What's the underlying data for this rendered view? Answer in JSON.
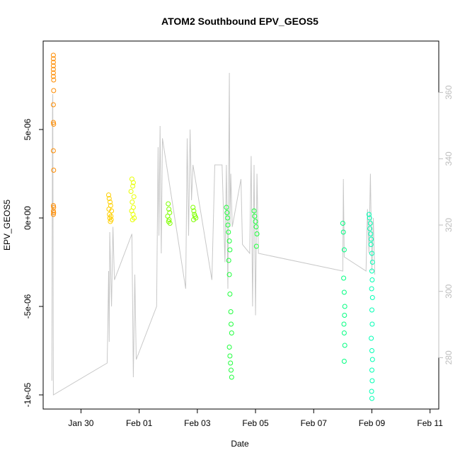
{
  "chart_data": {
    "type": "scatter",
    "title": "ATOM2 Southbound EPV_GEOS5",
    "xlabel": "Date",
    "ylabel": "EPV_GEOS5",
    "x_ticks": [
      "Jan 30",
      "Feb 01",
      "Feb 03",
      "Feb 05",
      "Feb 07",
      "Feb 09",
      "Feb 11"
    ],
    "y_ticks": [
      "-1e-05",
      "-5e-06",
      "0e+00",
      "5e-06"
    ],
    "y_tick_values": [
      -1e-05,
      -5e-06,
      0,
      5e-06
    ],
    "y2_ticks": [
      "280",
      "300",
      "320",
      "340",
      "360"
    ],
    "y2_tick_values": [
      280,
      300,
      320,
      340,
      360
    ],
    "xlim_days_from_jan29": [
      -0.3,
      13.3
    ],
    "ylim": [
      -1.08e-05,
      1e-05
    ],
    "y2lim": [
      264.5,
      375.5
    ],
    "line_color": "#c8c8c8",
    "grid": false,
    "series": [
      {
        "color": "#ff8c00",
        "points": [
          [
            0.05,
            9.2e-06
          ],
          [
            0.05,
            9e-06
          ],
          [
            0.05,
            8.8e-06
          ],
          [
            0.05,
            8.6e-06
          ],
          [
            0.05,
            8.4e-06
          ],
          [
            0.05,
            8.2e-06
          ],
          [
            0.05,
            8e-06
          ],
          [
            0.06,
            7.8e-06
          ],
          [
            0.06,
            7.2e-06
          ],
          [
            0.05,
            6.4e-06
          ],
          [
            0.05,
            5.4e-06
          ],
          [
            0.06,
            5.3e-06
          ],
          [
            0.05,
            3.8e-06
          ],
          [
            0.06,
            2.7e-06
          ],
          [
            0.05,
            7e-07
          ],
          [
            0.06,
            6e-07
          ],
          [
            0.05,
            4e-07
          ],
          [
            0.06,
            3e-07
          ],
          [
            0.05,
            2e-07
          ]
        ]
      },
      {
        "color": "#ffd000",
        "points": [
          [
            1.95,
            1.3e-06
          ],
          [
            1.97,
            1.1e-06
          ],
          [
            2.0,
            9e-07
          ],
          [
            2.02,
            7e-07
          ],
          [
            1.96,
            5e-07
          ],
          [
            2.05,
            4e-07
          ],
          [
            1.98,
            2e-07
          ],
          [
            2.03,
            1e-07
          ],
          [
            1.99,
            0.0
          ],
          [
            2.04,
            -1e-07
          ],
          [
            2.01,
            -2e-07
          ]
        ]
      },
      {
        "color": "#e8ff00",
        "points": [
          [
            2.75,
            2.2e-06
          ],
          [
            2.8,
            2e-06
          ],
          [
            2.78,
            1.8e-06
          ],
          [
            2.72,
            1.5e-06
          ],
          [
            2.82,
            1.2e-06
          ],
          [
            2.76,
            9e-07
          ],
          [
            2.8,
            6e-07
          ],
          [
            2.74,
            4e-07
          ],
          [
            2.79,
            2e-07
          ],
          [
            2.83,
            0.0
          ],
          [
            2.77,
            -1e-07
          ]
        ]
      },
      {
        "color": "#7fff00",
        "points": [
          [
            4.0,
            8e-07
          ],
          [
            4.02,
            5e-07
          ],
          [
            4.05,
            3e-07
          ],
          [
            3.98,
            1e-07
          ],
          [
            4.03,
            -1e-07
          ],
          [
            4.01,
            -2e-07
          ],
          [
            4.06,
            -3e-07
          ],
          [
            4.85,
            6e-07
          ],
          [
            4.88,
            4e-07
          ],
          [
            4.9,
            2e-07
          ],
          [
            4.92,
            1e-07
          ],
          [
            4.95,
            0.0
          ],
          [
            4.87,
            -1e-07
          ]
        ]
      },
      {
        "color": "#1eff3c",
        "points": [
          [
            6.0,
            6e-07
          ],
          [
            6.02,
            3e-07
          ],
          [
            6.04,
            0.0
          ],
          [
            6.05,
            -4e-07
          ],
          [
            6.07,
            -8e-07
          ],
          [
            6.1,
            -1.3e-06
          ],
          [
            6.12,
            -1.8e-06
          ],
          [
            6.08,
            -2.4e-06
          ],
          [
            6.1,
            -3.2e-06
          ],
          [
            6.12,
            -4.3e-06
          ],
          [
            6.15,
            -5.3e-06
          ],
          [
            6.16,
            -6e-06
          ],
          [
            6.18,
            -6.5e-06
          ],
          [
            6.1,
            -7.3e-06
          ],
          [
            6.12,
            -7.8e-06
          ],
          [
            6.14,
            -8.2e-06
          ],
          [
            6.16,
            -8.6e-06
          ],
          [
            6.18,
            -9e-06
          ],
          [
            6.95,
            4e-07
          ],
          [
            6.97,
            1e-07
          ],
          [
            7.0,
            -2e-07
          ],
          [
            7.02,
            -5e-07
          ],
          [
            7.05,
            -9e-07
          ],
          [
            7.03,
            -1.6e-06
          ]
        ]
      },
      {
        "color": "#00ff80",
        "points": [
          [
            10.0,
            -3e-07
          ],
          [
            10.02,
            -8e-07
          ],
          [
            10.05,
            -1.8e-06
          ],
          [
            10.03,
            -3.4e-06
          ],
          [
            10.05,
            -4.2e-06
          ],
          [
            10.07,
            -5e-06
          ],
          [
            10.06,
            -5.5e-06
          ],
          [
            10.04,
            -6e-06
          ],
          [
            10.05,
            -6.5e-06
          ],
          [
            10.07,
            -7.2e-06
          ],
          [
            10.05,
            -8.1e-06
          ]
        ]
      },
      {
        "color": "#00ffb4",
        "points": [
          [
            10.9,
            2e-07
          ],
          [
            10.92,
            0.0
          ],
          [
            10.95,
            -3e-07
          ],
          [
            10.93,
            -6e-07
          ],
          [
            10.96,
            -9e-07
          ],
          [
            10.98,
            -1.2e-06
          ],
          [
            10.97,
            -1.5e-06
          ],
          [
            11.0,
            -2e-06
          ],
          [
            11.02,
            -2.5e-06
          ],
          [
            11.0,
            -3e-06
          ],
          [
            11.01,
            -3.5e-06
          ],
          [
            10.99,
            -4e-06
          ],
          [
            11.02,
            -4.5e-06
          ],
          [
            11.0,
            -5.2e-06
          ],
          [
            11.01,
            -6e-06
          ],
          [
            10.98,
            -6.8e-06
          ],
          [
            11.0,
            -7.5e-06
          ],
          [
            11.02,
            -8e-06
          ],
          [
            11.0,
            -8.6e-06
          ],
          [
            11.01,
            -9.2e-06
          ],
          [
            10.99,
            -9.8e-06
          ],
          [
            11.0,
            -1.02e-05
          ]
        ]
      }
    ],
    "line": [
      [
        0.0,
        -9.2e-06
      ],
      [
        0.02,
        6.5e-06
      ],
      [
        0.03,
        7e-06
      ],
      [
        0.05,
        -1e-05
      ],
      [
        1.9,
        -8.2e-06
      ],
      [
        1.92,
        -6.5e-06
      ],
      [
        1.95,
        -3e-06
      ],
      [
        1.97,
        -7e-06
      ],
      [
        1.99,
        -8e-07
      ],
      [
        2.05,
        -5e-06
      ],
      [
        2.1,
        -5e-07
      ],
      [
        2.15,
        -3.5e-06
      ],
      [
        2.75,
        -9e-07
      ],
      [
        2.8,
        -9e-06
      ],
      [
        2.85,
        -3.2e-06
      ],
      [
        2.9,
        -8e-06
      ],
      [
        3.6,
        -5e-06
      ],
      [
        3.65,
        4e-06
      ],
      [
        3.68,
        -1e-06
      ],
      [
        3.72,
        5.2e-06
      ],
      [
        3.76,
        -2e-06
      ],
      [
        3.8,
        4.5e-06
      ],
      [
        4.6,
        -4e-06
      ],
      [
        4.65,
        4.5e-06
      ],
      [
        4.7,
        -1e-06
      ],
      [
        4.75,
        5e-06
      ],
      [
        4.8,
        1e-06
      ],
      [
        4.85,
        3e-06
      ],
      [
        5.5,
        -3.5e-06
      ],
      [
        5.6,
        3e-06
      ],
      [
        5.85,
        3e-06
      ],
      [
        5.95,
        -2.5e-06
      ],
      [
        6.0,
        3e-06
      ],
      [
        6.05,
        -4e-06
      ],
      [
        6.1,
        8.2e-06
      ],
      [
        6.12,
        -5e-07
      ],
      [
        6.15,
        2.5e-06
      ],
      [
        6.2,
        -5e-07
      ],
      [
        6.5,
        2.2e-06
      ],
      [
        6.55,
        -1.5e-06
      ],
      [
        6.8,
        -2e-06
      ],
      [
        6.85,
        3.5e-06
      ],
      [
        6.9,
        -5e-06
      ],
      [
        6.95,
        3e-06
      ],
      [
        7.0,
        -5.5e-06
      ],
      [
        7.05,
        2.5e-06
      ],
      [
        7.1,
        -2e-06
      ],
      [
        10.0,
        -3e-06
      ],
      [
        10.02,
        2.2e-06
      ],
      [
        10.05,
        -2.2e-06
      ],
      [
        10.8,
        -3e-06
      ],
      [
        10.85,
        5e-07
      ],
      [
        10.9,
        -2e-06
      ],
      [
        10.95,
        2.5e-06
      ],
      [
        11.0,
        -3e-06
      ],
      [
        11.05,
        0.0
      ],
      [
        11.1,
        -3.2e-06
      ]
    ]
  }
}
